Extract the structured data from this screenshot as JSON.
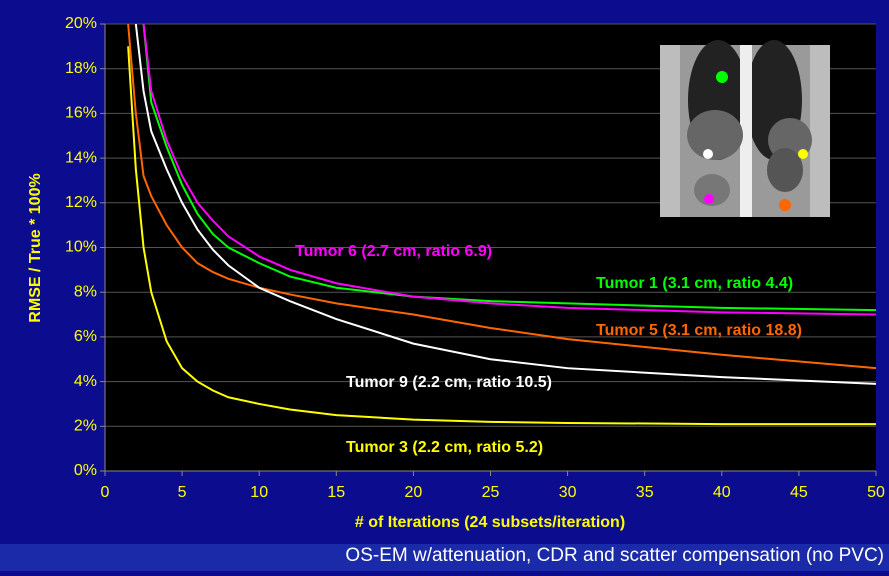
{
  "chart_data": {
    "type": "line",
    "x_label": "# of Iterations (24 subsets/iteration)",
    "y_label": "RMSE / True * 100%",
    "caption": "OS-EM w/attenuation, CDR and scatter compensation (no PVC)",
    "x": [
      1.5,
      2,
      2.5,
      3,
      4,
      5,
      6,
      7,
      8,
      10,
      12,
      15,
      20,
      25,
      30,
      40,
      50
    ],
    "series": [
      {
        "name": "Tumor 1 (3.1 cm, ratio 4.4)",
        "color": "#00ff00",
        "values": [
          null,
          null,
          20,
          16.5,
          14.5,
          12.8,
          11.5,
          10.6,
          10,
          9.3,
          8.7,
          8.2,
          7.8,
          7.6,
          7.5,
          7.3,
          7.2
        ]
      },
      {
        "name": "Tumor 3 (2.2 cm, ratio 5.2)",
        "color": "#ffff00",
        "values": [
          19,
          13.5,
          10,
          8,
          5.8,
          4.6,
          4.0,
          3.6,
          3.3,
          3.0,
          2.75,
          2.5,
          2.3,
          2.2,
          2.15,
          2.1,
          2.1
        ]
      },
      {
        "name": "Tumor 5 (3.1 cm, ratio 18.8)",
        "color": "#ff6600",
        "values": [
          20,
          16,
          13.2,
          12.3,
          11,
          10,
          9.3,
          8.9,
          8.6,
          8.2,
          7.9,
          7.5,
          7.0,
          6.4,
          5.9,
          5.2,
          4.6
        ]
      },
      {
        "name": "Tumor 6 (2.7 cm, ratio 6.9)",
        "color": "#ff00ff",
        "values": [
          null,
          null,
          20,
          17,
          14.8,
          13.2,
          12,
          11.2,
          10.5,
          9.6,
          9,
          8.4,
          7.8,
          7.5,
          7.3,
          7.1,
          7.0
        ]
      },
      {
        "name": "Tumor 9 (2.2 cm, ratio 10.5)",
        "color": "#ffffff",
        "values": [
          null,
          20,
          17,
          15.2,
          13.5,
          12,
          10.8,
          9.9,
          9.2,
          8.2,
          7.6,
          6.8,
          5.7,
          5.0,
          4.6,
          4.2,
          3.9
        ]
      }
    ],
    "xlim": [
      0,
      50
    ],
    "xticks": [
      0,
      5,
      10,
      15,
      20,
      25,
      30,
      35,
      40,
      45,
      50
    ],
    "ylim": [
      0,
      20
    ],
    "yticks": [
      {
        "value": 0,
        "label": "0%"
      },
      {
        "value": 2,
        "label": "2%"
      },
      {
        "value": 4,
        "label": "4%"
      },
      {
        "value": 6,
        "label": "6%"
      },
      {
        "value": 8,
        "label": "8%"
      },
      {
        "value": 10,
        "label": "10%"
      },
      {
        "value": 12,
        "label": "12%"
      },
      {
        "value": 14,
        "label": "14%"
      },
      {
        "value": 16,
        "label": "16%"
      },
      {
        "value": 18,
        "label": "18%"
      },
      {
        "value": 20,
        "label": "20%"
      }
    ],
    "grid": true
  }
}
